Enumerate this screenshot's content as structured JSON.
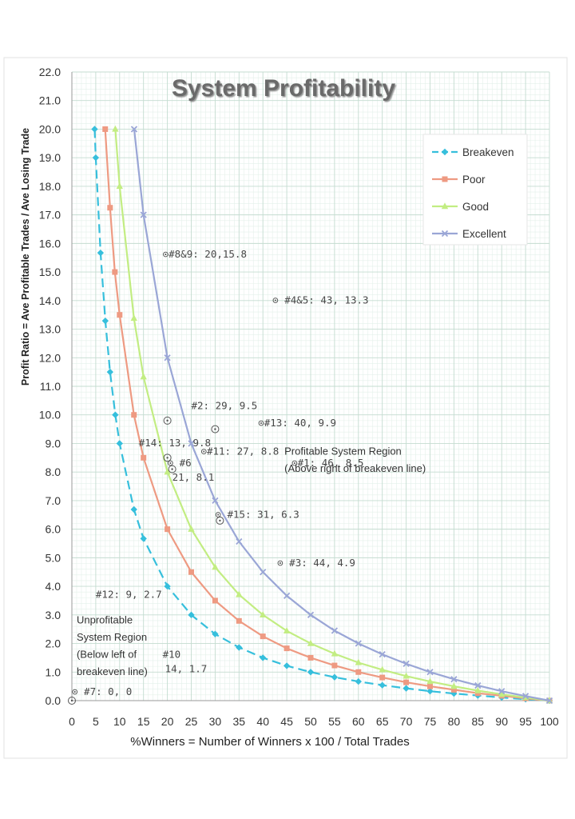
{
  "chart_data": {
    "type": "line",
    "title": "System Profitability",
    "xlabel": "%Winners = Number of Winners x 100 / Total Trades",
    "ylabel": "Profit Ratio = Ave Profitable Trades / Ave Losing Trade",
    "xlim": [
      0,
      100
    ],
    "ylim": [
      0,
      22
    ],
    "x_ticks": [
      "0",
      "5",
      "10",
      "15",
      "20",
      "25",
      "30",
      "35",
      "40",
      "45",
      "50",
      "55",
      "60",
      "65",
      "70",
      "75",
      "80",
      "85",
      "90",
      "95",
      "100"
    ],
    "y_ticks": [
      "0.0",
      "1.0",
      "2.0",
      "3.0",
      "4.0",
      "5.0",
      "6.0",
      "7.0",
      "8.0",
      "9.0",
      "10.0",
      "11.0",
      "12.0",
      "13.0",
      "14.0",
      "15.0",
      "16.0",
      "17.0",
      "18.0",
      "19.0",
      "20.0",
      "21.0",
      "22.0"
    ],
    "grid": true,
    "legend_position": "top-right",
    "series": [
      {
        "name": "Breakeven",
        "color": "#36bfdc",
        "marker": "diamond",
        "dashed": true,
        "points": [
          [
            4.76,
            20
          ],
          [
            5,
            19
          ],
          [
            6,
            15.67
          ],
          [
            7,
            13.29
          ],
          [
            8,
            11.5
          ],
          [
            9.09,
            10
          ],
          [
            10,
            9
          ],
          [
            13,
            6.69
          ],
          [
            15,
            5.67
          ],
          [
            20,
            4
          ],
          [
            25,
            3
          ],
          [
            30,
            2.33
          ],
          [
            35,
            1.86
          ],
          [
            40,
            1.5
          ],
          [
            45,
            1.22
          ],
          [
            50,
            1
          ],
          [
            55,
            0.82
          ],
          [
            60,
            0.67
          ],
          [
            65,
            0.54
          ],
          [
            70,
            0.43
          ],
          [
            75,
            0.33
          ],
          [
            80,
            0.25
          ],
          [
            85,
            0.18
          ],
          [
            90,
            0.11
          ],
          [
            95,
            0.05
          ],
          [
            100,
            0
          ]
        ]
      },
      {
        "name": "Poor",
        "color": "#ee9a82",
        "marker": "square",
        "dashed": false,
        "points": [
          [
            6.98,
            20
          ],
          [
            8,
            17.25
          ],
          [
            9,
            15.0
          ],
          [
            10,
            13.5
          ],
          [
            13,
            10.0
          ],
          [
            15,
            8.5
          ],
          [
            20,
            6.0
          ],
          [
            25,
            4.5
          ],
          [
            30,
            3.5
          ],
          [
            35,
            2.79
          ],
          [
            40,
            2.25
          ],
          [
            45,
            1.83
          ],
          [
            50,
            1.5
          ],
          [
            55,
            1.23
          ],
          [
            60,
            1.0
          ],
          [
            65,
            0.81
          ],
          [
            70,
            0.64
          ],
          [
            75,
            0.5
          ],
          [
            80,
            0.38
          ],
          [
            85,
            0.26
          ],
          [
            90,
            0.17
          ],
          [
            95,
            0.08
          ],
          [
            100,
            0
          ]
        ]
      },
      {
        "name": "Good",
        "color": "#c2ed82",
        "marker": "triangle",
        "dashed": false,
        "points": [
          [
            9.09,
            20
          ],
          [
            10,
            18.0
          ],
          [
            13,
            13.38
          ],
          [
            15,
            11.33
          ],
          [
            20,
            8.0
          ],
          [
            25,
            6.0
          ],
          [
            30,
            4.67
          ],
          [
            35,
            3.71
          ],
          [
            40,
            3.0
          ],
          [
            45,
            2.44
          ],
          [
            50,
            2.0
          ],
          [
            55,
            1.64
          ],
          [
            60,
            1.33
          ],
          [
            65,
            1.08
          ],
          [
            70,
            0.86
          ],
          [
            75,
            0.67
          ],
          [
            80,
            0.5
          ],
          [
            85,
            0.35
          ],
          [
            90,
            0.22
          ],
          [
            95,
            0.11
          ],
          [
            100,
            0
          ]
        ]
      },
      {
        "name": "Excellent",
        "color": "#9aa6d6",
        "marker": "x",
        "dashed": false,
        "points": [
          [
            13.04,
            20
          ],
          [
            15,
            17.0
          ],
          [
            20,
            12.0
          ],
          [
            25,
            9.0
          ],
          [
            30,
            7.0
          ],
          [
            35,
            5.57
          ],
          [
            40,
            4.5
          ],
          [
            45,
            3.67
          ],
          [
            50,
            3.0
          ],
          [
            55,
            2.45
          ],
          [
            60,
            2.0
          ],
          [
            65,
            1.62
          ],
          [
            70,
            1.29
          ],
          [
            75,
            1.0
          ],
          [
            80,
            0.75
          ],
          [
            85,
            0.53
          ],
          [
            90,
            0.33
          ],
          [
            95,
            0.16
          ],
          [
            100,
            0
          ]
        ]
      }
    ],
    "annotations": [
      {
        "text": "⊙#8&9: 20,15.8",
        "x": 19,
        "y": 15.5,
        "style": "hand"
      },
      {
        "text": "⊙ #4&5: 43, 13.3",
        "x": 42,
        "y": 13.9,
        "style": "hand"
      },
      {
        "text": "#2: 29, 9.5",
        "x": 25,
        "y": 10.2,
        "style": "hand"
      },
      {
        "text": "⊙#13: 40, 9.9",
        "x": 39,
        "y": 9.6,
        "style": "hand"
      },
      {
        "text": "#14: 13, 9.8",
        "x": 14,
        "y": 8.9,
        "style": "hand"
      },
      {
        "text": "⊙#11: 27, 8.8",
        "x": 27,
        "y": 8.6,
        "style": "hand"
      },
      {
        "text": "⊙ #6",
        "x": 20,
        "y": 8.2,
        "style": "hand"
      },
      {
        "text": "21, 8.1",
        "x": 21,
        "y": 7.7,
        "style": "hand"
      },
      {
        "text": "⊙#1: 46, 8.5",
        "x": 46,
        "y": 8.2,
        "style": "hand"
      },
      {
        "text": "⊙ #15: 31, 6.3",
        "x": 30,
        "y": 6.4,
        "style": "hand"
      },
      {
        "text": "⊙ #3: 44, 4.9",
        "x": 43,
        "y": 4.7,
        "style": "hand"
      },
      {
        "text": "#12: 9, 2.7",
        "x": 5,
        "y": 3.6,
        "style": "hand"
      },
      {
        "text": "#10",
        "x": 19,
        "y": 1.5,
        "style": "hand"
      },
      {
        "text": "14, 1.7",
        "x": 19.5,
        "y": 1.0,
        "style": "hand"
      },
      {
        "text": "⊙ #7: 0, 0",
        "x": 0,
        "y": 0.2,
        "style": "hand"
      },
      {
        "text": "Profitable System Region",
        "x": 44.5,
        "y": 8.6,
        "style": "print"
      },
      {
        "text": "(Above right of breakeven line)",
        "x": 44.5,
        "y": 8.0,
        "style": "print"
      },
      {
        "text": "Unprofitable",
        "x": 1,
        "y": 2.7,
        "style": "print"
      },
      {
        "text": "System Region",
        "x": 1,
        "y": 2.1,
        "style": "print"
      },
      {
        "text": "(Below left of",
        "x": 1,
        "y": 1.5,
        "style": "print"
      },
      {
        "text": "breakeven line)",
        "x": 1,
        "y": 0.9,
        "style": "print"
      }
    ],
    "markers_only": [
      [
        20,
        9.8
      ],
      [
        30,
        9.5
      ],
      [
        21,
        8.1
      ],
      [
        20,
        8.5
      ],
      [
        31,
        6.3
      ],
      [
        0,
        0
      ]
    ]
  }
}
